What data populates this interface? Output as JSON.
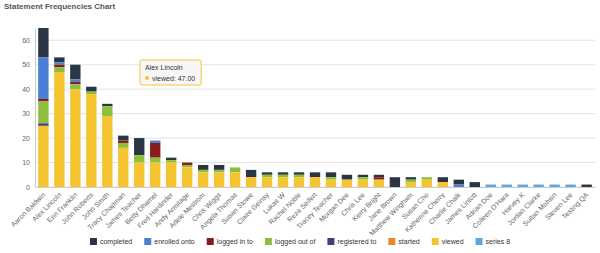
{
  "chart_data": {
    "type": "bar",
    "title": "Statement Frequencies Chart",
    "stacked": true,
    "grid": true,
    "legend": "bottom",
    "ylim": [
      0,
      65
    ],
    "yticks": [
      0,
      10,
      20,
      30,
      40,
      50,
      60
    ],
    "categories": [
      "Aaron Baldwin",
      "Alex Lincoln",
      "Erin Franklin",
      "John Roberts",
      "John Smith",
      "Tracy Chapman",
      "James Teacher",
      "Betty Dhamel",
      "Fred Hardinder",
      "Andy Armitage",
      "Adele Mestrom",
      "Chris Wiggs",
      "Angela Thomas",
      "Susan Stowe",
      "Claire Geinsy",
      "Lukas W",
      "Rachel Noble",
      "Reza Seifert",
      "Tracey Teacher",
      "Morgan Dee",
      "Chris Lee",
      "Kerry Bright",
      "Jane Brown",
      "Matthew Wingham",
      "Susan Cho",
      "Katherine Cherry",
      "Charlie Chalk",
      "James Lintott",
      "Adrian Doe",
      "Colleen O'Hara",
      "Harvey K",
      "Jordan Clarke",
      "Sultan Mohsin",
      "Steven Lee",
      "Testing QA"
    ],
    "series": [
      {
        "name": "completed",
        "color": "#2b3645",
        "values": [
          12,
          2,
          6,
          2,
          1,
          2,
          7,
          0,
          1,
          0,
          2,
          2,
          0,
          3,
          1,
          1,
          1,
          2,
          2,
          2,
          1,
          1,
          4,
          1,
          0,
          2,
          2,
          2,
          0,
          0,
          0,
          0,
          0,
          0,
          1
        ]
      },
      {
        "name": "enrolled onto",
        "color": "#4a7fd6",
        "values": [
          17,
          1,
          1,
          0,
          0,
          0,
          0,
          1,
          0,
          0,
          0,
          0,
          0,
          0,
          0,
          0,
          0,
          0,
          0,
          0,
          0,
          0,
          0,
          0,
          0,
          0,
          1,
          0,
          0,
          0,
          0,
          0,
          0,
          0,
          0
        ]
      },
      {
        "name": "logged in to",
        "color": "#8b1c1c",
        "values": [
          1,
          1,
          1,
          0,
          0,
          1,
          0,
          6,
          0,
          1,
          0,
          0,
          0,
          0,
          0,
          0,
          0,
          0,
          0,
          0,
          0,
          1,
          0,
          0,
          0,
          0,
          0,
          0,
          0,
          0,
          0,
          0,
          0,
          0,
          0
        ]
      },
      {
        "name": "logged out of",
        "color": "#8cbf3f",
        "values": [
          9,
          2,
          2,
          1,
          4,
          2,
          3,
          2,
          1,
          1,
          1,
          1,
          2,
          0,
          1,
          1,
          1,
          0,
          1,
          0,
          1,
          0,
          0,
          1,
          1,
          0,
          0,
          0,
          0,
          0,
          0,
          0,
          0,
          0,
          0
        ]
      },
      {
        "name": "registered to",
        "color": "#4b3a7a",
        "values": [
          1,
          0,
          0,
          0,
          0,
          0,
          0,
          0,
          0,
          0,
          0,
          0,
          0,
          0,
          0,
          0,
          0,
          0,
          0,
          0,
          0,
          0,
          0,
          0,
          0,
          0,
          0,
          0,
          0,
          0,
          0,
          0,
          0,
          0,
          0
        ]
      },
      {
        "name": "started",
        "color": "#e8862a",
        "values": [
          0,
          0,
          0,
          0,
          0,
          0,
          0,
          0,
          0,
          0,
          0,
          0,
          0,
          0,
          0,
          0,
          0,
          0,
          0,
          0,
          0,
          0,
          0,
          0,
          0,
          0,
          0,
          0,
          0,
          0,
          0,
          0,
          0,
          0,
          0
        ]
      },
      {
        "name": "viewed",
        "color": "#f5c531",
        "values": [
          25,
          47,
          40,
          38,
          29,
          16,
          10,
          10,
          10,
          8,
          6,
          6,
          6,
          4,
          4,
          4,
          4,
          4,
          3,
          3,
          3,
          3,
          0,
          2,
          3,
          2,
          0,
          0,
          0,
          0,
          0,
          0,
          0,
          0,
          0
        ]
      },
      {
        "name": "series 8",
        "color": "#5da9d6",
        "values": [
          0,
          0,
          0,
          0,
          0,
          0,
          0,
          0,
          0,
          0,
          0,
          0,
          0,
          0,
          0,
          0,
          0,
          0,
          0,
          0,
          0,
          0,
          0,
          0,
          0,
          0,
          0,
          0,
          1,
          1,
          1,
          1,
          1,
          1,
          0
        ]
      }
    ],
    "annotations": [
      {
        "title": "Alex Lincoln",
        "text": "viewed: 47.00"
      }
    ]
  }
}
